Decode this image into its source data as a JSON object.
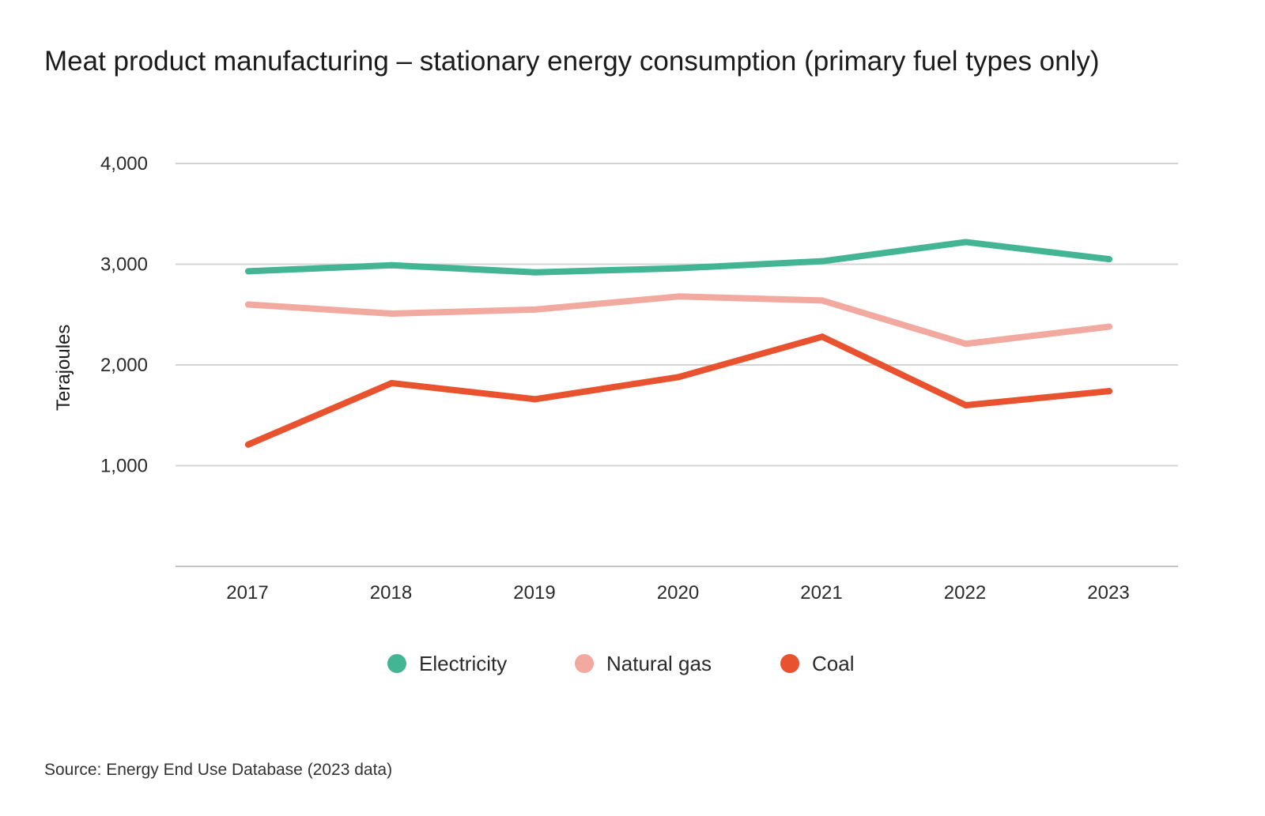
{
  "title": "Meat product manufacturing – stationary energy consumption (primary fuel types only)",
  "source": "Source: Energy End Use Database (2023 data)",
  "chart_data": {
    "type": "line",
    "title": "Meat product manufacturing – stationary energy consumption (primary fuel types only)",
    "xlabel": "",
    "ylabel": "Terajoules",
    "x": [
      "2017",
      "2018",
      "2019",
      "2020",
      "2021",
      "2022",
      "2023"
    ],
    "ylim": [
      0,
      4000
    ],
    "yticks": [
      1000,
      2000,
      3000,
      4000
    ],
    "ytick_labels": [
      "1,000",
      "2,000",
      "3,000",
      "4,000"
    ],
    "grid": true,
    "legend_position": "bottom-center",
    "series": [
      {
        "name": "Electricity",
        "color": "#44b594",
        "values": [
          2930,
          2990,
          2920,
          2960,
          3030,
          3220,
          3050
        ]
      },
      {
        "name": "Natural gas",
        "color": "#f2a9a0",
        "values": [
          2600,
          2510,
          2550,
          2680,
          2640,
          2210,
          2380
        ]
      },
      {
        "name": "Coal",
        "color": "#e8522e",
        "values": [
          1210,
          1820,
          1660,
          1880,
          2280,
          1600,
          1740
        ]
      }
    ]
  }
}
